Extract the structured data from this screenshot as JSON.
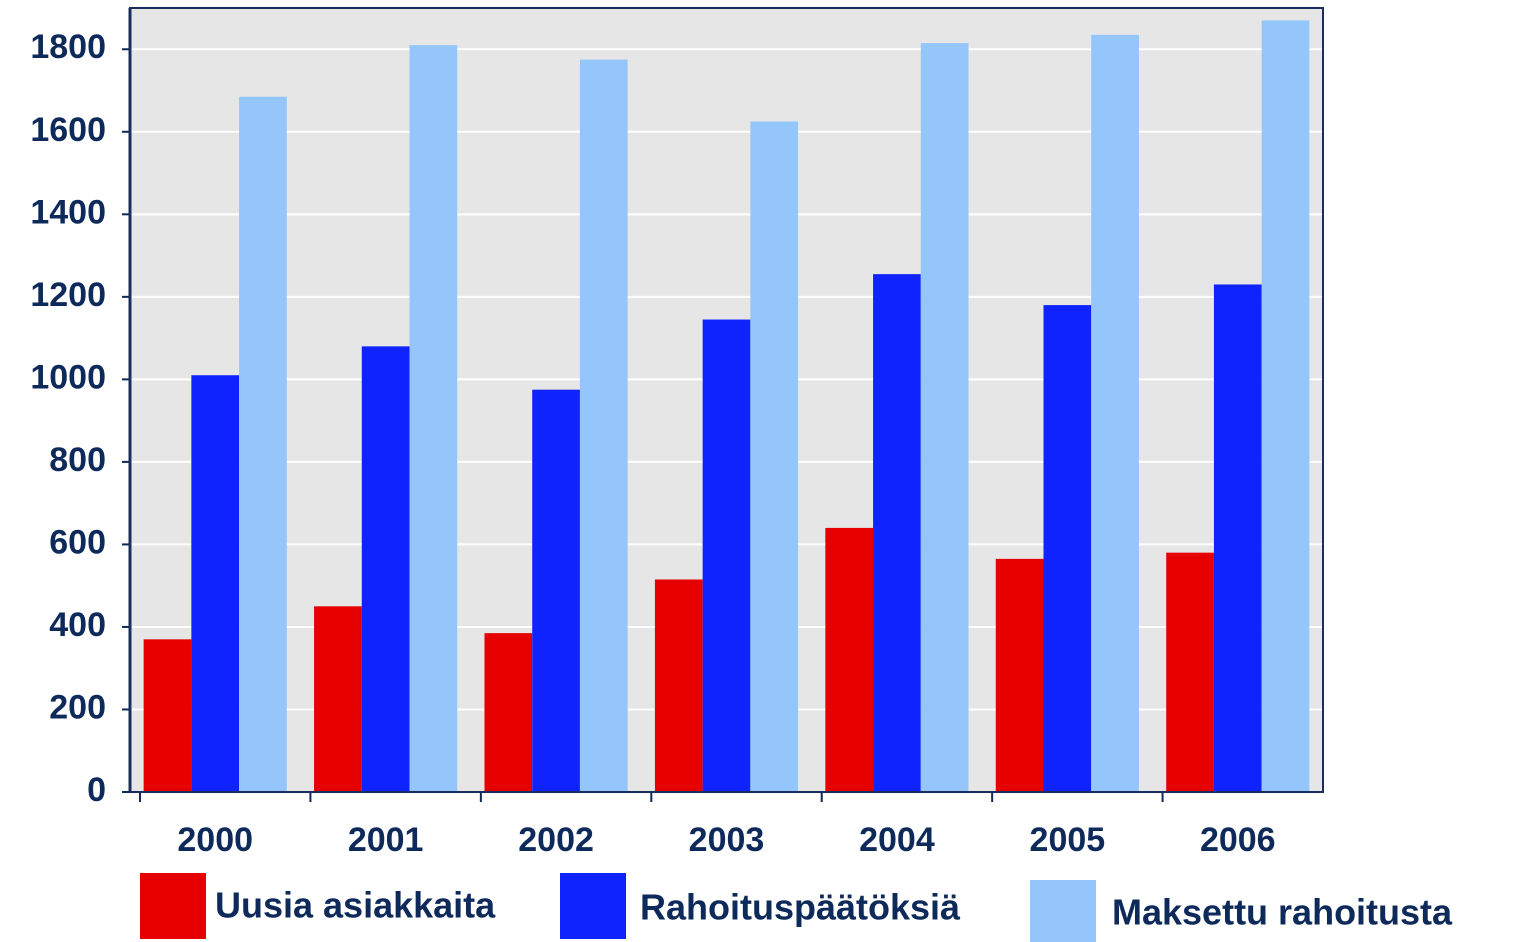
{
  "chart_data": {
    "type": "bar",
    "categories": [
      "2000",
      "2001",
      "2002",
      "2003",
      "2004",
      "2005",
      "2006"
    ],
    "series": [
      {
        "name": "Uusia asiakkaita",
        "color": "#e60000",
        "values": [
          370,
          450,
          385,
          515,
          640,
          565,
          580
        ]
      },
      {
        "name": "Rahoituspäätöksiä",
        "color": "#0f23ff",
        "values": [
          1010,
          1080,
          975,
          1145,
          1255,
          1180,
          1230
        ]
      },
      {
        "name": "Maksettu rahoitusta",
        "color": "#94c6fc",
        "values": [
          1685,
          1810,
          1775,
          1625,
          1815,
          1835,
          1870
        ]
      }
    ],
    "ylim": [
      0,
      1900
    ],
    "yticks": [
      0,
      200,
      400,
      600,
      800,
      1000,
      1200,
      1400,
      1600,
      1800
    ],
    "grid": true,
    "legend": "bottom"
  }
}
